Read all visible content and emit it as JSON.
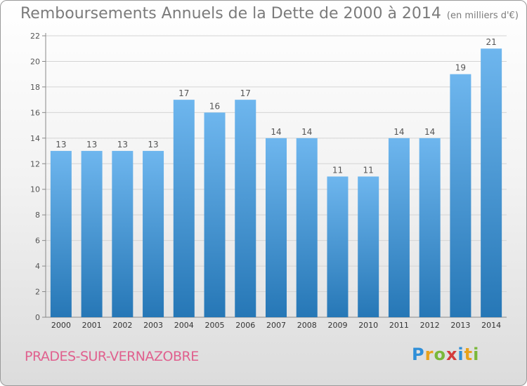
{
  "title": "Remboursements Annuels de la Dette de 2000 à 2014",
  "unit": "(en milliers d'€)",
  "commune": "PRADES-SUR-VERNAZOBRE",
  "logo": {
    "letters": [
      "P",
      "r",
      "o",
      "x",
      "i",
      "t",
      "i"
    ],
    "colors": [
      "#2f8fd8",
      "#e8a21c",
      "#7ab83a",
      "#d43b3b",
      "#2f8fd8",
      "#e8a21c",
      "#7ab83a"
    ]
  },
  "colors": {
    "bar_light": "#6eb6ee",
    "bar_dark": "#2677b6",
    "grid": "#d4d4d4"
  },
  "chart_data": {
    "type": "bar",
    "categories": [
      "2000",
      "2001",
      "2002",
      "2003",
      "2004",
      "2005",
      "2006",
      "2007",
      "2008",
      "2009",
      "2010",
      "2011",
      "2012",
      "2013",
      "2014"
    ],
    "values": [
      13,
      13,
      13,
      13,
      17,
      16,
      17,
      14,
      14,
      11,
      11,
      14,
      14,
      19,
      21
    ],
    "ylim": [
      0,
      22
    ],
    "yticks": [
      0,
      2,
      4,
      6,
      8,
      10,
      12,
      14,
      16,
      18,
      20,
      22
    ],
    "grid": true,
    "xlabel": "",
    "ylabel": ""
  }
}
